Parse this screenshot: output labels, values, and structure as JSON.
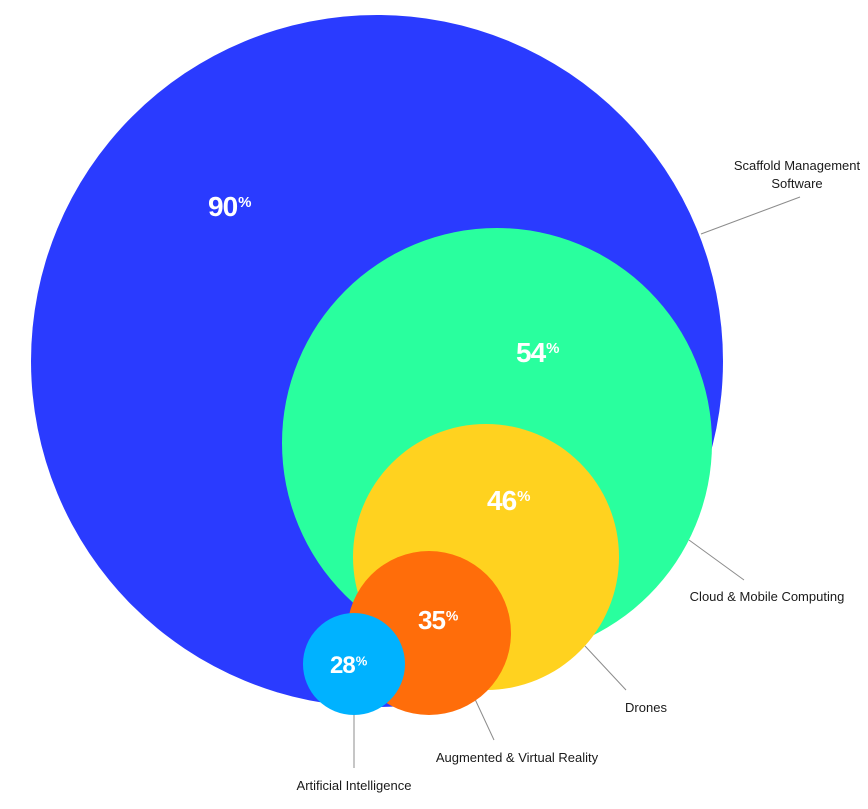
{
  "chart_data": {
    "type": "nested-circles",
    "title": "",
    "series": [
      {
        "name": "Scaffold Management Software",
        "label_lines": [
          "Scaffold Management",
          "Software"
        ],
        "value": 90,
        "color": "#2a3bff"
      },
      {
        "name": "Cloud & Mobile Computing",
        "label_lines": [
          "Cloud & Mobile Computing"
        ],
        "value": 54,
        "color": "#29ff9e"
      },
      {
        "name": "Drones",
        "label_lines": [
          "Drones"
        ],
        "value": 46,
        "color": "#ffd21f"
      },
      {
        "name": "Augmented & Virtual Reality",
        "label_lines": [
          "Augmented & Virtual Reality"
        ],
        "value": 35,
        "color": "#ff6d0a"
      },
      {
        "name": "Artificial Intelligence",
        "label_lines": [
          "Artificial Intelligence"
        ],
        "value": 28,
        "color": "#00b2ff"
      }
    ],
    "value_suffix": "%"
  }
}
